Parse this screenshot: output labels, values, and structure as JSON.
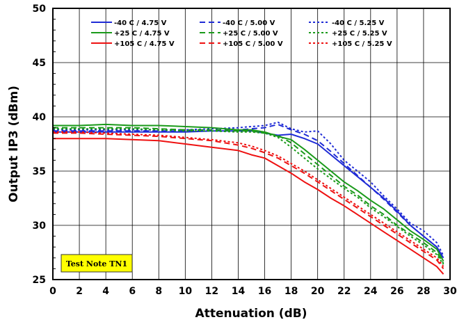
{
  "chart_data": {
    "type": "line",
    "xlabel": "Attenuation (dB)",
    "ylabel": "Output IP3 (dBm)",
    "xlim": [
      0,
      30
    ],
    "ylim": [
      25,
      50
    ],
    "xticks": [
      0,
      2,
      4,
      6,
      8,
      10,
      12,
      14,
      16,
      18,
      20,
      22,
      24,
      26,
      28,
      30
    ],
    "yticks": [
      25,
      30,
      35,
      40,
      45,
      50
    ],
    "grid": true,
    "legend_position": "top",
    "annotation": "Test Note TN1",
    "colors": {
      "-40 C": "#1f2bd6",
      "+25 C": "#1a9a1a",
      "+105 C": "#ee1111",
      "note_bg": "#ffff00"
    },
    "x": [
      0,
      2,
      4,
      6,
      8,
      10,
      12,
      14,
      15,
      16,
      17,
      18,
      19,
      20,
      21,
      22,
      23,
      24,
      25,
      26,
      27,
      28,
      29,
      29.5
    ],
    "series": [
      {
        "name": "-40 C /  4.75 V",
        "style": "solid",
        "color": "#1f2bd6",
        "values": [
          38.6,
          38.6,
          38.6,
          38.6,
          38.6,
          38.6,
          38.7,
          38.7,
          38.7,
          38.5,
          38.3,
          38.4,
          38.0,
          37.5,
          36.5,
          35.5,
          34.5,
          33.5,
          32.5,
          31.3,
          30.0,
          29.0,
          28.0,
          27.0
        ]
      },
      {
        "name": "-40 C /  5.00 V",
        "style": "dashed",
        "color": "#1f2bd6",
        "values": [
          38.7,
          38.7,
          38.7,
          38.7,
          38.7,
          38.7,
          38.8,
          38.8,
          38.9,
          39.0,
          39.3,
          38.8,
          38.4,
          37.8,
          36.8,
          35.7,
          34.6,
          33.5,
          32.4,
          31.2,
          30.0,
          29.0,
          28.0,
          26.8
        ]
      },
      {
        "name": "-40 C /  5.25 V",
        "style": "dotted",
        "color": "#1f2bd6",
        "values": [
          38.8,
          38.8,
          38.8,
          38.8,
          38.8,
          38.8,
          38.9,
          39.0,
          39.1,
          39.2,
          39.5,
          38.9,
          38.6,
          38.7,
          37.5,
          36.0,
          35.0,
          34.0,
          32.7,
          31.5,
          30.2,
          29.5,
          28.4,
          27.2
        ]
      },
      {
        "name": "+25 C /  4.75 V",
        "style": "solid",
        "color": "#1a9a1a",
        "values": [
          39.2,
          39.2,
          39.3,
          39.2,
          39.2,
          39.1,
          39.0,
          38.8,
          38.8,
          38.6,
          38.2,
          37.9,
          37.0,
          36.0,
          35.0,
          34.0,
          33.2,
          32.3,
          31.5,
          30.5,
          29.5,
          28.7,
          27.8,
          26.7
        ]
      },
      {
        "name": "+25 C /  5.00 V",
        "style": "dashed",
        "color": "#1a9a1a",
        "values": [
          39.0,
          39.0,
          39.0,
          39.0,
          38.9,
          38.8,
          38.8,
          38.7,
          38.7,
          38.5,
          38.3,
          37.6,
          36.6,
          35.6,
          34.6,
          33.6,
          32.8,
          31.8,
          31.0,
          30.0,
          29.2,
          28.4,
          27.5,
          26.5
        ]
      },
      {
        "name": "+25 C /  5.25 V",
        "style": "dotted",
        "color": "#1a9a1a",
        "values": [
          38.9,
          38.9,
          38.9,
          38.9,
          38.8,
          38.7,
          38.7,
          38.6,
          38.6,
          38.5,
          38.1,
          37.2,
          36.2,
          35.2,
          34.3,
          33.4,
          32.6,
          31.6,
          30.8,
          29.9,
          29.0,
          28.2,
          27.3,
          26.4
        ]
      },
      {
        "name": "+105 C /  4.75 V",
        "style": "solid",
        "color": "#ee1111",
        "values": [
          38.0,
          38.0,
          38.0,
          37.9,
          37.8,
          37.5,
          37.2,
          36.9,
          36.5,
          36.2,
          35.5,
          34.8,
          34.0,
          33.3,
          32.5,
          31.8,
          31.0,
          30.2,
          29.4,
          28.6,
          27.8,
          27.0,
          26.2,
          25.5
        ]
      },
      {
        "name": "+105 C /  5.00 V",
        "style": "dashed",
        "color": "#ee1111",
        "values": [
          38.5,
          38.5,
          38.4,
          38.3,
          38.2,
          38.0,
          37.8,
          37.4,
          37.1,
          36.7,
          36.2,
          35.5,
          34.8,
          34.0,
          33.2,
          32.4,
          31.6,
          30.8,
          30.0,
          29.2,
          28.4,
          27.6,
          26.8,
          26.0
        ]
      },
      {
        "name": "+105 C /  5.25 V",
        "style": "dotted",
        "color": "#ee1111",
        "values": [
          38.6,
          38.6,
          38.5,
          38.4,
          38.3,
          38.1,
          37.9,
          37.6,
          37.3,
          36.9,
          36.4,
          35.7,
          35.0,
          34.2,
          33.4,
          32.6,
          31.8,
          31.0,
          30.2,
          29.4,
          28.6,
          27.8,
          27.0,
          26.2
        ]
      }
    ]
  }
}
